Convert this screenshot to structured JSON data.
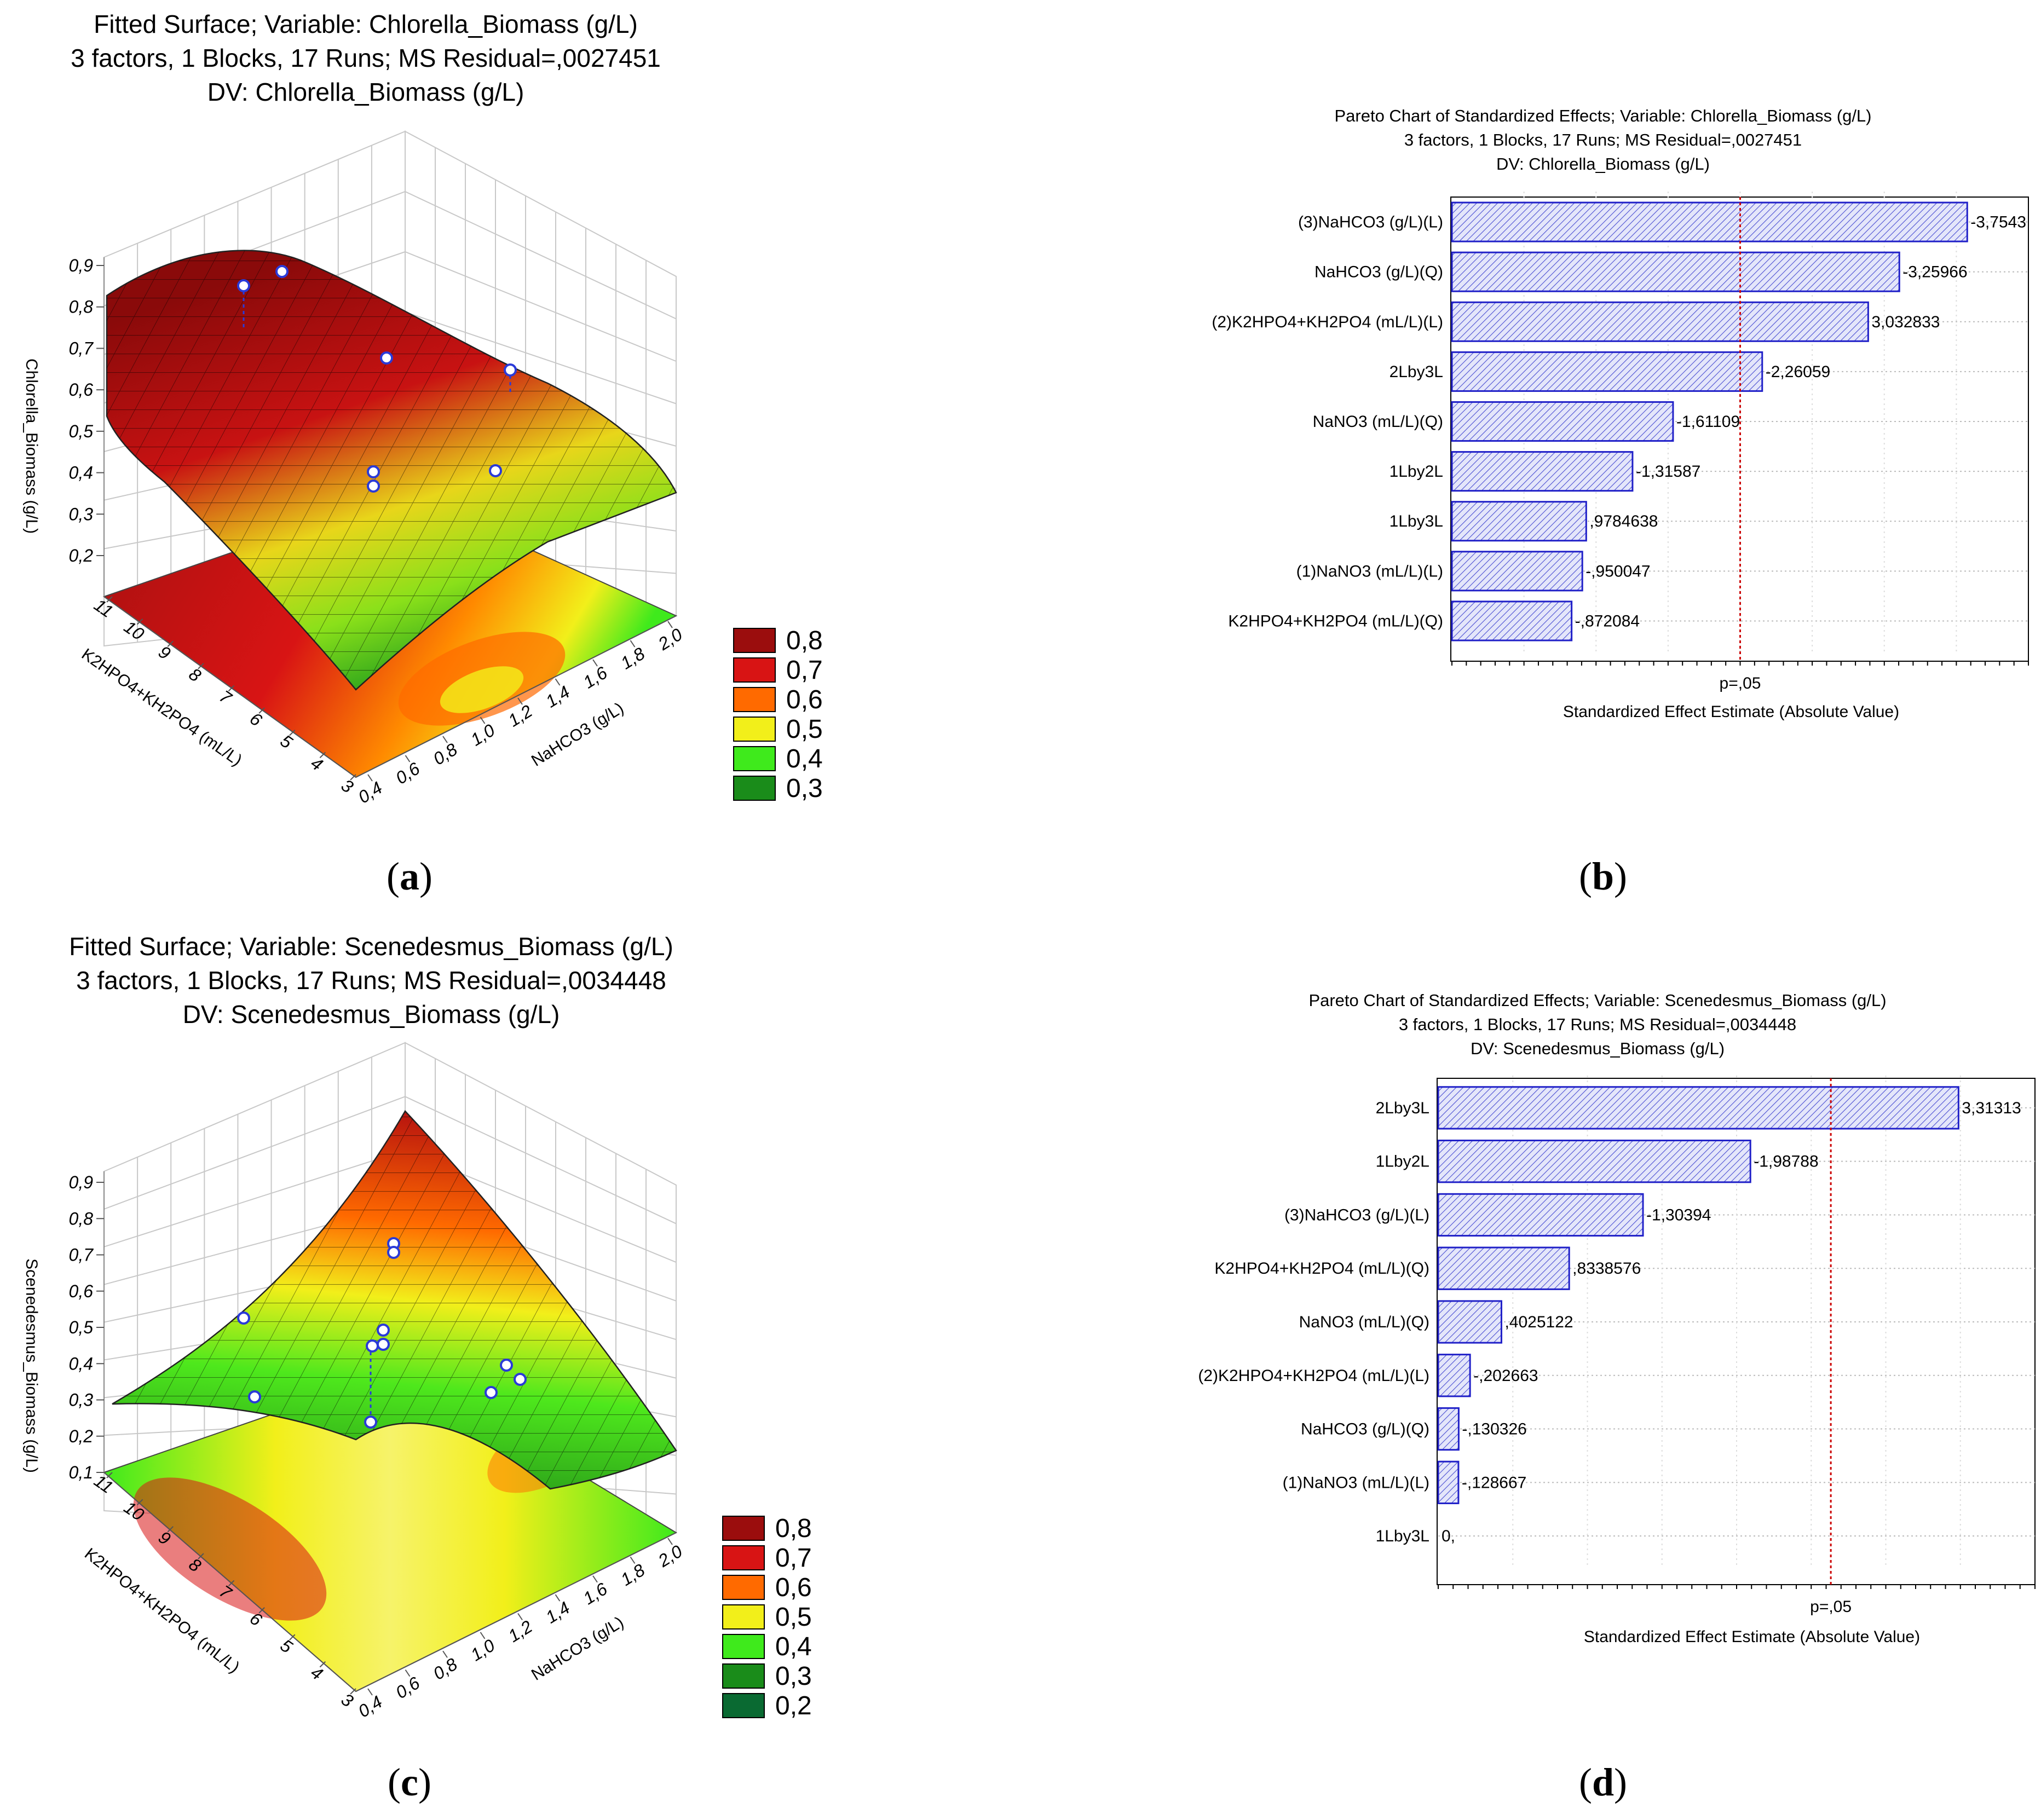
{
  "panels": {
    "a": "a",
    "b": "b",
    "c": "c",
    "d": "d"
  },
  "colors": {
    "bar_stroke": "#2020c8",
    "bar_fill": "#e4e6fa",
    "threshold": "#cc0000",
    "legend": [
      "#9b0d0d",
      "#d81414",
      "#ff6a00",
      "#f2ef1a",
      "#3fea1c",
      "#1a8c1a",
      "#0a6a32"
    ]
  },
  "chart_data": [
    {
      "panel": "a",
      "type": "surface3d",
      "title_lines": [
        "Fitted Surface; Variable: Chlorella_Biomass (g/L)",
        "3 factors, 1 Blocks, 17 Runs; MS Residual=,0027451",
        "DV: Chlorella_Biomass (g/L)"
      ],
      "zlabel": "Chlorella_Biomass (g/L)",
      "z_ticks": [
        "0,9",
        "0,8",
        "0,7",
        "0,6",
        "0,5",
        "0,4",
        "0,3",
        "0,2"
      ],
      "xlabel": "K2HPO4+KH2PO4 (mL/L)",
      "x_ticks": [
        "11",
        "10",
        "9",
        "8",
        "7",
        "6",
        "5",
        "4",
        "3"
      ],
      "ylabel": "NaHCO3 (g/L)",
      "y_ticks": [
        "0,4",
        "0,6",
        "0,8",
        "1,0",
        "1,2",
        "1,4",
        "1,6",
        "1,8",
        "2,0"
      ],
      "legend": [
        "0,8",
        "0,7",
        "0,6",
        "0,5",
        "0,4",
        "0,3"
      ]
    },
    {
      "panel": "b",
      "type": "bar",
      "orientation": "horizontal",
      "title_lines": [
        "Pareto Chart of Standardized Effects; Variable: Chlorella_Biomass (g/L)",
        "3 factors, 1 Blocks, 17 Runs; MS Residual=,0027451",
        "DV: Chlorella_Biomass (g/L)"
      ],
      "xlabel": "Standardized Effect Estimate (Absolute Value)",
      "threshold_label": "p=,05",
      "threshold": 2.1,
      "xlim": [
        0,
        4.2
      ],
      "categories": [
        "(3)NaHCO3 (g/L)(L)",
        "NaHCO3 (g/L)(Q)",
        "(2)K2HPO4+KH2PO4 (mL/L)(L)",
        "2Lby3L",
        "NaNO3 (mL/L)(Q)",
        "1Lby2L",
        "1Lby3L",
        "(1)NaNO3 (mL/L)(L)",
        "K2HPO4+KH2PO4 (mL/L)(Q)"
      ],
      "values": [
        3.7543,
        3.25966,
        3.032833,
        2.26059,
        1.61109,
        1.31587,
        0.9784638,
        0.950047,
        0.872084
      ],
      "labels": [
        "-3,7543",
        "-3,25966",
        "3,032833",
        "-2,26059",
        "-1,61109",
        "-1,31587",
        ",9784638",
        "-,950047",
        "-,872084"
      ]
    },
    {
      "panel": "c",
      "type": "surface3d",
      "title_lines": [
        "Fitted Surface; Variable: Scenedesmus_Biomass (g/L)",
        "3 factors, 1 Blocks, 17 Runs; MS Residual=,0034448",
        "DV: Scenedesmus_Biomass (g/L)"
      ],
      "zlabel": "Scenedesmus_Biomass (g/L)",
      "z_ticks": [
        "0,9",
        "0,8",
        "0,7",
        "0,6",
        "0,5",
        "0,4",
        "0,3",
        "0,2",
        "0,1"
      ],
      "xlabel": "K2HPO4+KH2PO4 (mL/L)",
      "x_ticks": [
        "11",
        "10",
        "9",
        "8",
        "7",
        "6",
        "5",
        "4",
        "3"
      ],
      "ylabel": "NaHCO3 (g/L)",
      "y_ticks": [
        "0,4",
        "0,6",
        "0,8",
        "1,0",
        "1,2",
        "1,4",
        "1,6",
        "1,8",
        "2,0"
      ],
      "legend": [
        "0,8",
        "0,7",
        "0,6",
        "0,5",
        "0,4",
        "0,3",
        "0,2"
      ]
    },
    {
      "panel": "d",
      "type": "bar",
      "orientation": "horizontal",
      "title_lines": [
        "Pareto Chart of Standardized Effects; Variable: Scenedesmus_Biomass (g/L)",
        "3 factors, 1 Blocks, 17 Runs; MS Residual=,0034448",
        "DV: Scenedesmus_Biomass (g/L)"
      ],
      "xlabel": "Standardized Effect Estimate (Absolute Value)",
      "threshold_label": "p=,05",
      "threshold": 2.5,
      "xlim": [
        0,
        3.8
      ],
      "categories": [
        "2Lby3L",
        "1Lby2L",
        "(3)NaHCO3 (g/L)(L)",
        "K2HPO4+KH2PO4 (mL/L)(Q)",
        "NaNO3 (mL/L)(Q)",
        "(2)K2HPO4+KH2PO4 (mL/L)(L)",
        "NaHCO3 (g/L)(Q)",
        "(1)NaNO3 (mL/L)(L)",
        "1Lby3L"
      ],
      "values": [
        3.31313,
        1.98788,
        1.30394,
        0.8338576,
        0.4025122,
        0.202663,
        0.130326,
        0.128667,
        0.0
      ],
      "labels": [
        "3,31313",
        "-1,98788",
        "-1,30394",
        ",8338576",
        ",4025122",
        "-,202663",
        "-,130326",
        "-,128667",
        "0,"
      ]
    }
  ]
}
